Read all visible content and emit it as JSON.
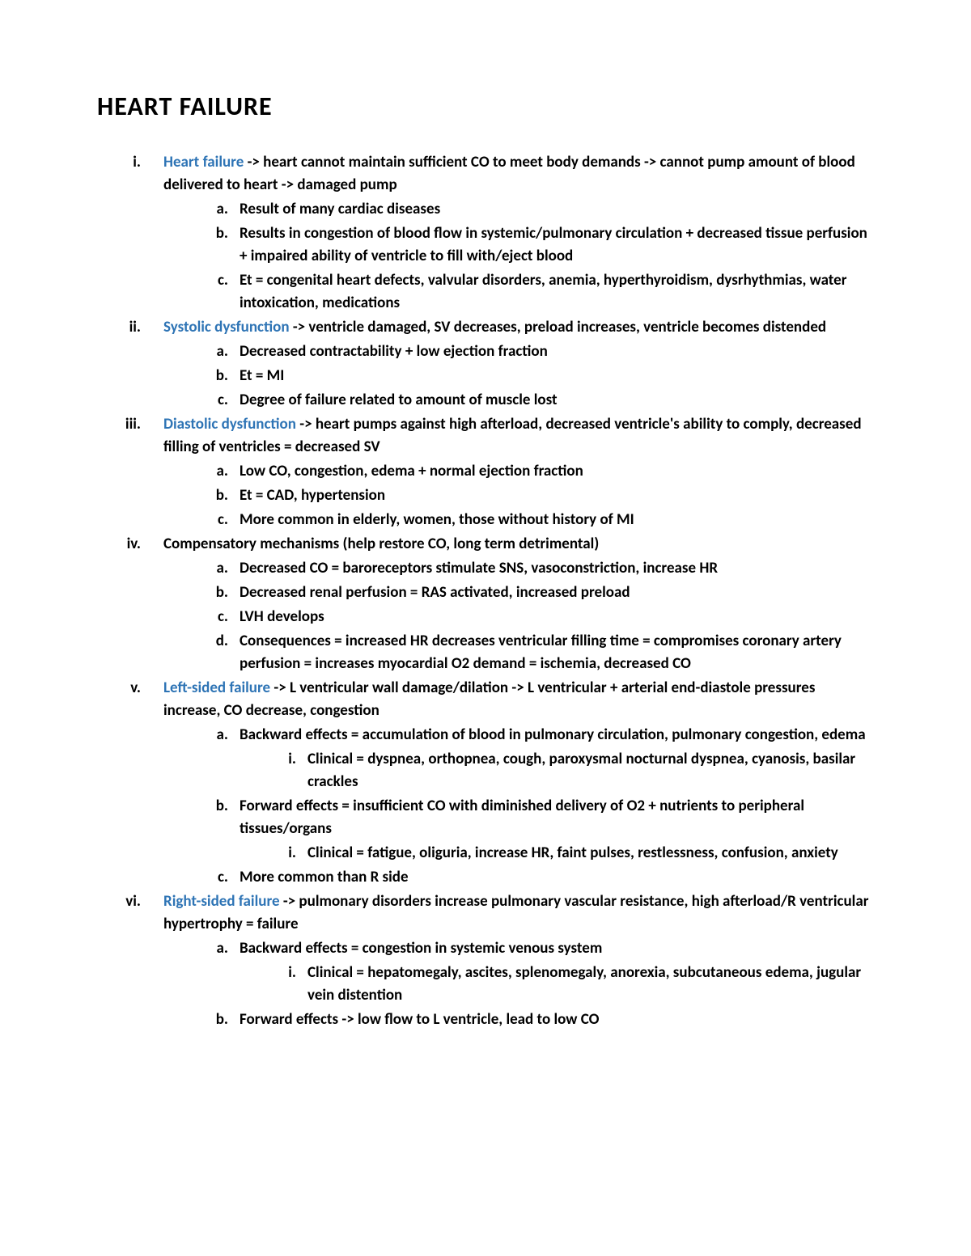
{
  "title": "HEART FAILURE",
  "colors": {
    "term": "#2e74b5",
    "text": "#000000",
    "bg": "#ffffff"
  },
  "typography": {
    "title_size": 32,
    "body_size": 19,
    "line_height": 28,
    "weight": 600
  },
  "items": [
    {
      "marker": "i.",
      "term": "Heart failure",
      "rest": " -> heart cannot maintain sufficient CO to meet body demands -> cannot pump amount of blood delivered to heart -> damaged pump",
      "children": [
        {
          "marker": "a.",
          "text": "Result of many cardiac diseases"
        },
        {
          "marker": "b.",
          "text": "Results in congestion of blood flow in systemic/pulmonary circulation + decreased tissue perfusion + impaired ability of ventricle to fill with/eject blood"
        },
        {
          "marker": "c.",
          "text": "Et = congenital heart defects, valvular disorders, anemia, hyperthyroidism, dysrhythmias, water intoxication, medications"
        }
      ]
    },
    {
      "marker": "ii.",
      "term": "Systolic dysfunction",
      "rest": " -> ventricle damaged, SV decreases, preload increases, ventricle becomes distended",
      "children": [
        {
          "marker": "a.",
          "text": "Decreased contractability + low ejection fraction"
        },
        {
          "marker": "b.",
          "text": "Et = MI"
        },
        {
          "marker": "c.",
          "text": "Degree of failure related to amount of muscle lost"
        }
      ]
    },
    {
      "marker": "iii.",
      "term": "Diastolic dysfunction",
      "rest": " -> heart pumps against high afterload, decreased ventricle's ability to comply, decreased filling of ventricles = decreased SV",
      "children": [
        {
          "marker": "a.",
          "text": "Low CO, congestion, edema + normal ejection fraction"
        },
        {
          "marker": "b.",
          "text": "Et = CAD, hypertension"
        },
        {
          "marker": "c.",
          "text": "More common in elderly, women, those without history of MI"
        }
      ]
    },
    {
      "marker": "iv.",
      "term": "",
      "rest": "Compensatory mechanisms (help restore CO, long term detrimental)",
      "children": [
        {
          "marker": "a.",
          "text": "Decreased CO = baroreceptors stimulate SNS, vasoconstriction, increase HR"
        },
        {
          "marker": "b.",
          "text": "Decreased renal perfusion = RAS activated, increased preload"
        },
        {
          "marker": "c.",
          "text": "LVH develops"
        },
        {
          "marker": "d.",
          "text": "Consequences = increased HR decreases ventricular filling time = compromises coronary artery perfusion = increases myocardial O2 demand = ischemia, decreased CO"
        }
      ]
    },
    {
      "marker": "v.",
      "term": "Left-sided failure",
      "rest": " -> L ventricular wall damage/dilation -> L ventricular + arterial end-diastole pressures increase, CO decrease, congestion",
      "children": [
        {
          "marker": "a.",
          "text": "Backward effects = accumulation of blood in pulmonary circulation, pulmonary congestion, edema",
          "children": [
            {
              "marker": "i.",
              "text": "Clinical = dyspnea, orthopnea, cough, paroxysmal nocturnal dyspnea, cyanosis, basilar crackles"
            }
          ]
        },
        {
          "marker": "b.",
          "text": "Forward effects = insufficient CO with diminished delivery of O2 + nutrients to peripheral tissues/organs",
          "children": [
            {
              "marker": "i.",
              "text": "Clinical = fatigue, oliguria, increase HR, faint pulses, restlessness, confusion, anxiety"
            }
          ]
        },
        {
          "marker": "c.",
          "text": "More common than R side"
        }
      ]
    },
    {
      "marker": "vi.",
      "term": "Right-sided failure",
      "rest": " -> pulmonary disorders increase pulmonary vascular resistance, high afterload/R ventricular hypertrophy = failure",
      "children": [
        {
          "marker": "a.",
          "text": "Backward effects = congestion in systemic venous system",
          "children": [
            {
              "marker": "i.",
              "text": "Clinical = hepatomegaly, ascites, splenomegaly, anorexia, subcutaneous edema, jugular vein distention"
            }
          ]
        },
        {
          "marker": "b.",
          "text": "Forward effects -> low flow to L ventricle, lead to low CO"
        }
      ]
    }
  ]
}
